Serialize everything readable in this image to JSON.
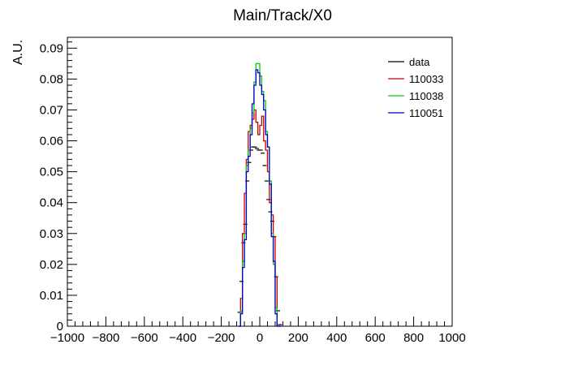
{
  "chart_data": {
    "type": "line",
    "title": "Main/Track/X0",
    "xlabel": "",
    "ylabel": "A.U.",
    "xlim": [
      -1000,
      1000
    ],
    "ylim": [
      0,
      0.0935
    ],
    "x_ticks": [
      -1000,
      -800,
      -600,
      -400,
      -200,
      0,
      200,
      400,
      600,
      800,
      1000
    ],
    "x_tick_labels": [
      "−1000",
      "−800",
      "−600",
      "−400",
      "−200",
      "0",
      "200",
      "400",
      "600",
      "800",
      "1000"
    ],
    "y_ticks": [
      0,
      0.01,
      0.02,
      0.03,
      0.04,
      0.05,
      0.06,
      0.07,
      0.08,
      0.09
    ],
    "y_tick_labels": [
      "0",
      "0.01",
      "0.02",
      "0.03",
      "0.04",
      "0.05",
      "0.06",
      "0.07",
      "0.08",
      "0.09"
    ],
    "grid": false,
    "legend_position": "top-right",
    "bin_edges": [
      -110,
      -100,
      -90,
      -80,
      -70,
      -60,
      -50,
      -40,
      -30,
      -20,
      -10,
      0,
      10,
      20,
      30,
      40,
      50,
      60,
      70,
      80,
      90,
      100,
      110
    ],
    "series": [
      {
        "name": "data",
        "color": "#000000",
        "style": "markers",
        "values": [
          0.0045,
          0.0145,
          0.027,
          0.033,
          0.047,
          0.053,
          0.057,
          0.058,
          0.058,
          0.0575,
          0.057,
          0.057,
          0.056,
          0.052,
          0.047,
          0.041,
          0.037,
          0.034,
          0.029,
          0.016,
          0.005,
          0.0005
        ]
      },
      {
        "name": "110033",
        "color": "#cc0000",
        "style": "step",
        "values": [
          0.0,
          0.009,
          0.03,
          0.043,
          0.054,
          0.063,
          0.065,
          0.067,
          0.07,
          0.066,
          0.062,
          0.065,
          0.068,
          0.06,
          0.057,
          0.05,
          0.04,
          0.036,
          0.029,
          0.016,
          0.0,
          0.0
        ]
      },
      {
        "name": "110038",
        "color": "#00cc00",
        "style": "step",
        "values": [
          0.0,
          0.005,
          0.021,
          0.03,
          0.052,
          0.057,
          0.064,
          0.069,
          0.079,
          0.085,
          0.085,
          0.081,
          0.076,
          0.073,
          0.063,
          0.058,
          0.047,
          0.03,
          0.02,
          0.006,
          0.0,
          0.0
        ]
      },
      {
        "name": "110051",
        "color": "#0000cc",
        "style": "step",
        "values": [
          0.0,
          0.004,
          0.019,
          0.028,
          0.05,
          0.055,
          0.062,
          0.072,
          0.078,
          0.083,
          0.082,
          0.078,
          0.075,
          0.07,
          0.062,
          0.058,
          0.046,
          0.029,
          0.021,
          0.004,
          0.0,
          0.0
        ]
      }
    ]
  }
}
